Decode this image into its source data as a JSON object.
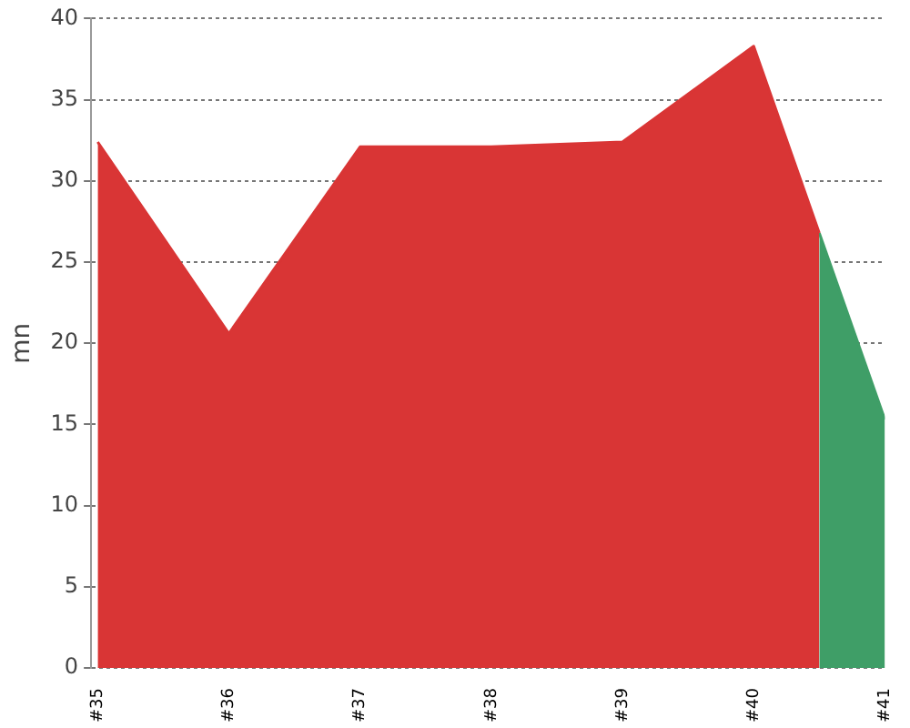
{
  "chart_data": {
    "type": "area",
    "ylabel": "mn",
    "series": [
      {
        "color": "#d93535",
        "x": [
          35,
          36,
          37,
          38,
          39,
          40,
          40.5
        ],
        "values": [
          32.4,
          20.6,
          32.1,
          32.1,
          32.4,
          38.3,
          26.8
        ]
      },
      {
        "color": "#3f9e67",
        "x": [
          40.5,
          41
        ],
        "values": [
          26.8,
          15.3
        ]
      }
    ],
    "xlim": [
      34.95,
      41
    ],
    "xticks": [
      {
        "value": 35,
        "label": "#35"
      },
      {
        "value": 36,
        "label": "#36"
      },
      {
        "value": 37,
        "label": "#37"
      },
      {
        "value": 38,
        "label": "#38"
      },
      {
        "value": 39,
        "label": "#39"
      },
      {
        "value": 40,
        "label": "#40"
      },
      {
        "value": 41,
        "label": "#41"
      }
    ],
    "ylim": [
      0,
      40
    ],
    "yticks": [
      0,
      5,
      10,
      15,
      20,
      25,
      30,
      35,
      40
    ],
    "grid": "y",
    "legend": false
  }
}
